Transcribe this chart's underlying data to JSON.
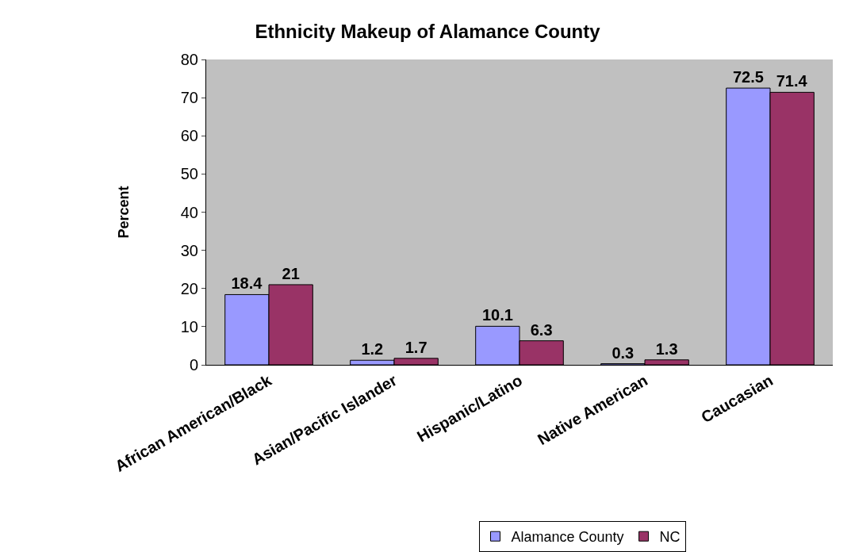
{
  "chart_data": {
    "type": "bar",
    "title": "Ethnicity Makeup of Alamance County",
    "ylabel": "Percent",
    "categories": [
      "African American/Black",
      "Asian/Pacific Islander",
      "Hispanic/Latino",
      "Native American",
      "Caucasian"
    ],
    "series": [
      {
        "name": "Alamance County",
        "color": "#9999ff",
        "values": [
          18.4,
          1.2,
          10.1,
          0.3,
          72.5
        ]
      },
      {
        "name": "NC",
        "color": "#993366",
        "values": [
          21,
          1.7,
          6.3,
          1.3,
          71.4
        ]
      }
    ],
    "ylim": [
      0,
      80
    ],
    "yticks": [
      0,
      10,
      20,
      30,
      40,
      50,
      60,
      70,
      80
    ],
    "grid": false,
    "legend": "bottom",
    "data_labels": true
  }
}
